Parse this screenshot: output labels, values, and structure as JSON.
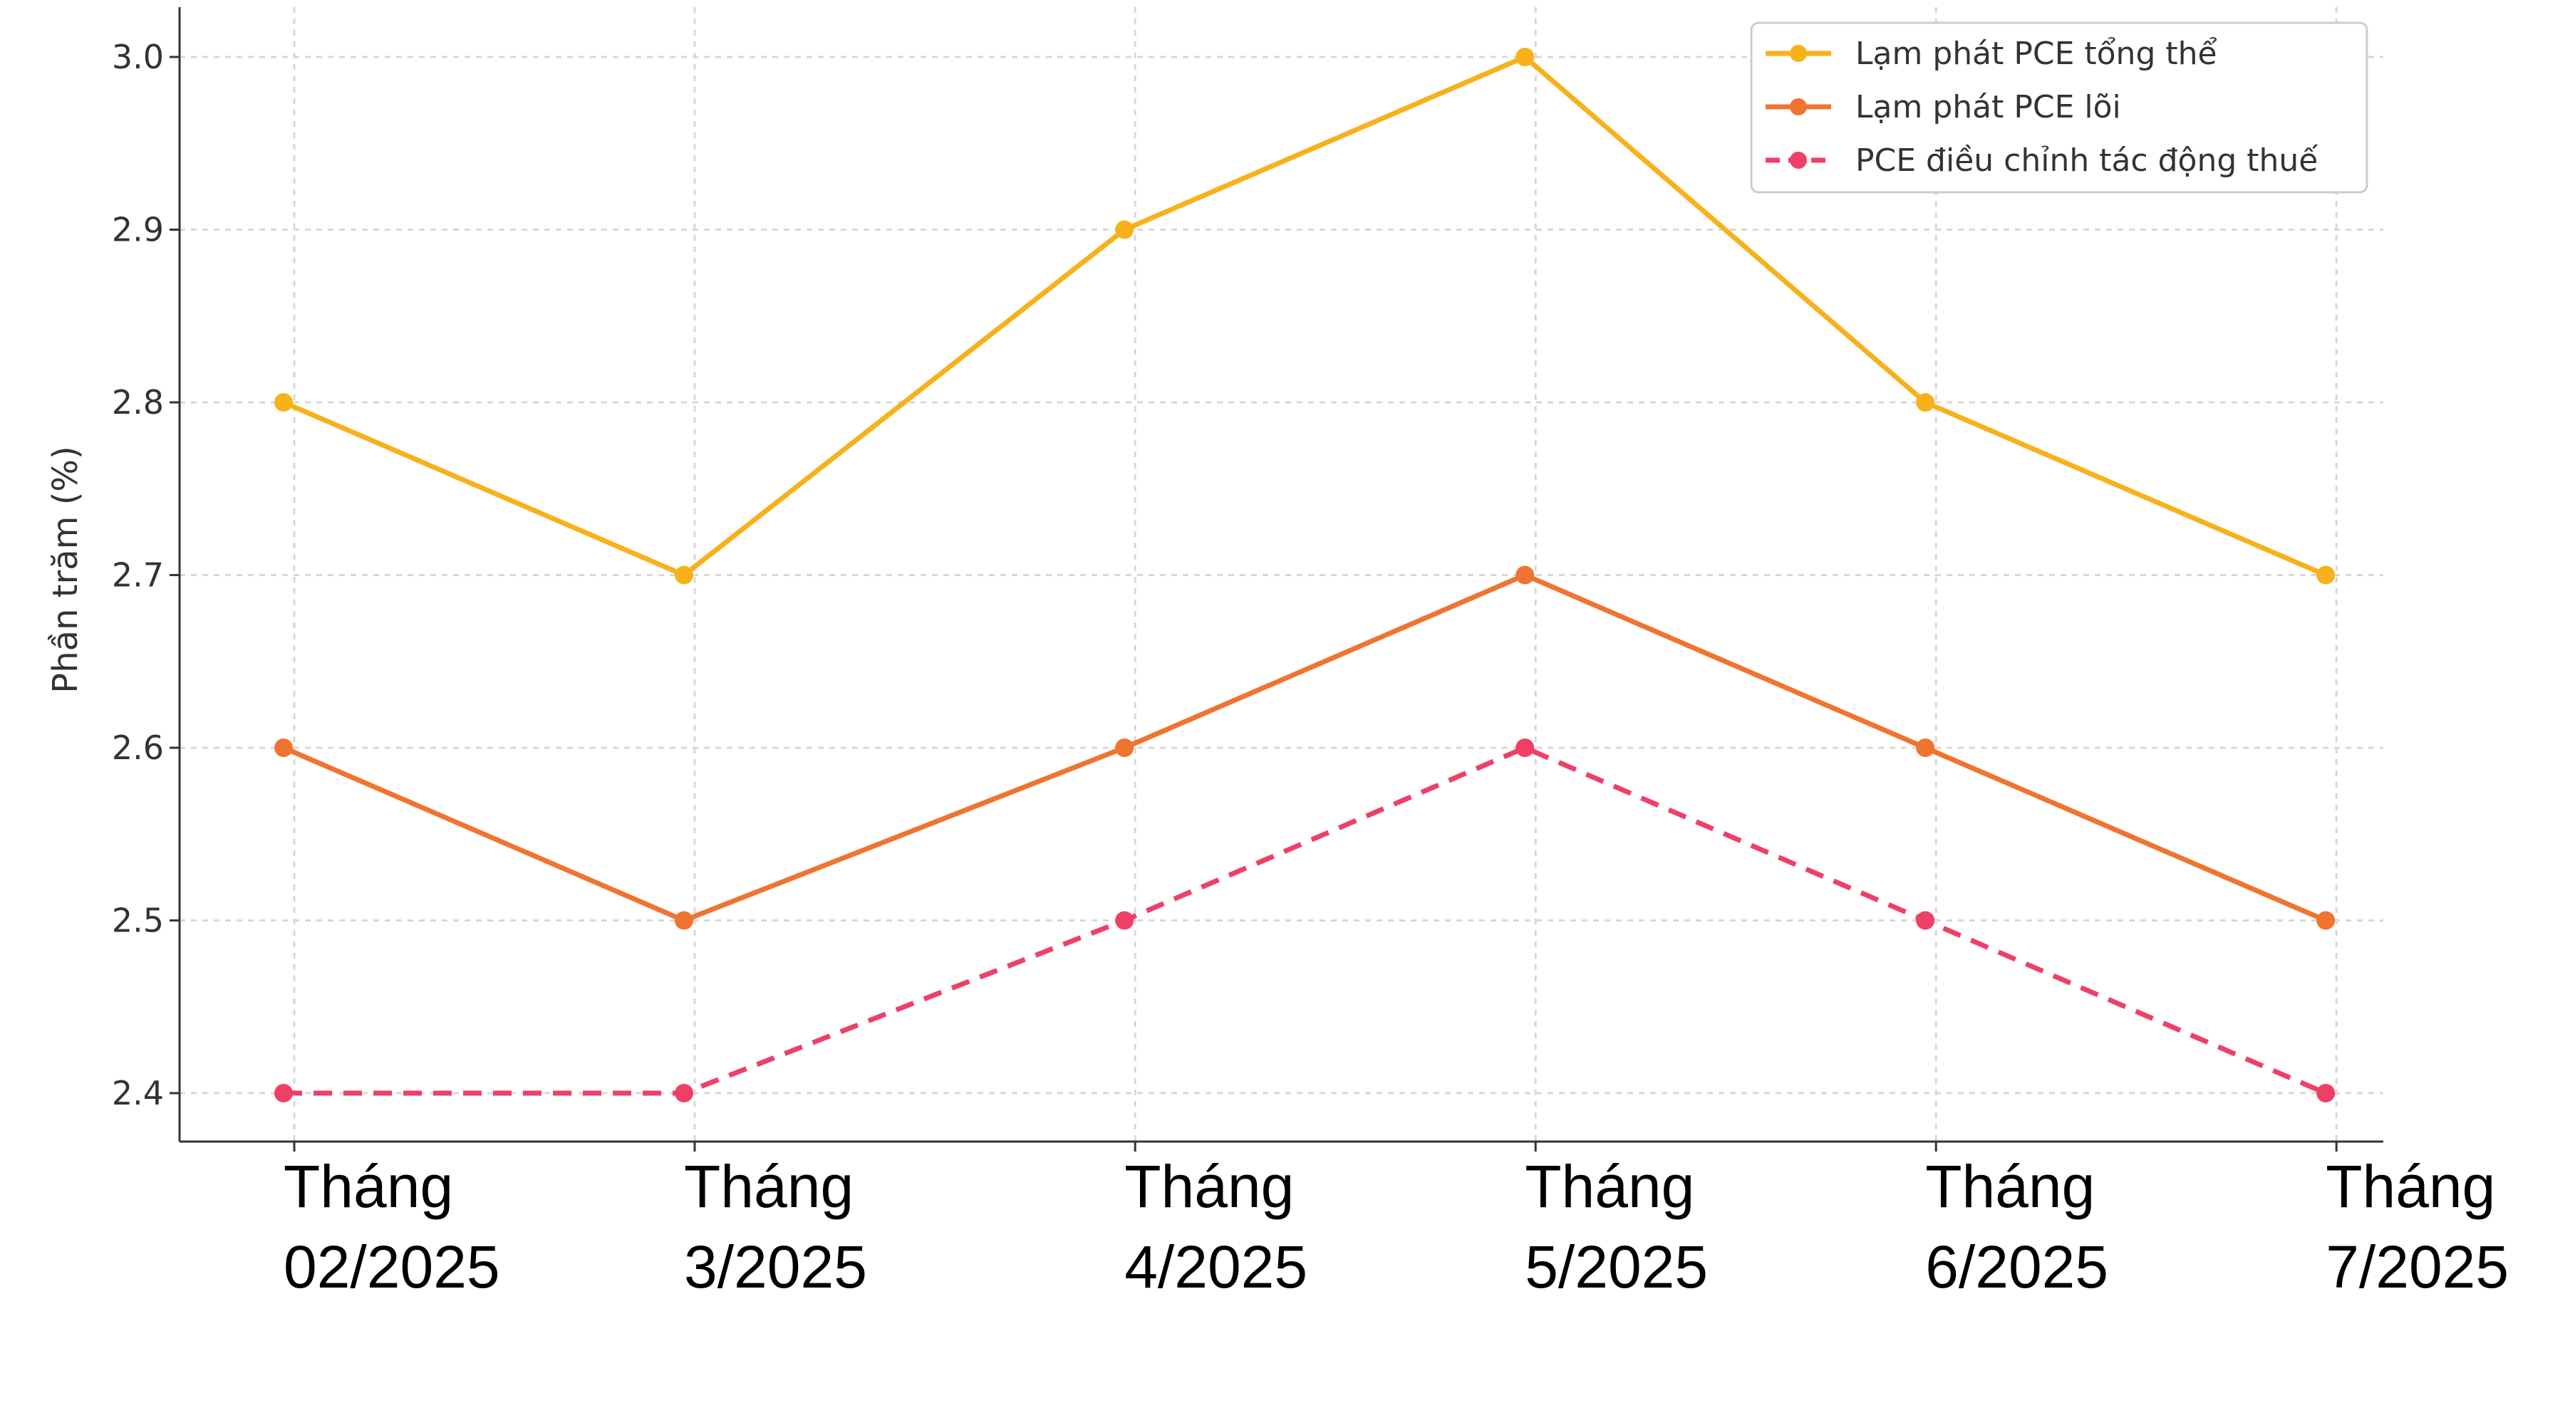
{
  "chart_data": {
    "type": "line",
    "title": "",
    "xlabel": "",
    "ylabel": "Phần trăm (%)",
    "categories": [
      [
        "Tháng",
        "02/2025"
      ],
      [
        "Tháng",
        "3/2025"
      ],
      [
        "Tháng",
        "4/2025"
      ],
      [
        "Tháng",
        "5/2025"
      ],
      [
        "Tháng",
        "6/2025"
      ],
      [
        "Tháng",
        "7/2025"
      ]
    ],
    "x_positions": [
      0,
      1,
      2.1,
      3.1,
      4.1,
      5.1
    ],
    "ylim": [
      2.4,
      3.0
    ],
    "yticks": [
      "2.4",
      "2.5",
      "2.6",
      "2.7",
      "2.8",
      "2.9",
      "3.0"
    ],
    "grid": true,
    "legend_position": "top-right",
    "series": [
      {
        "name": "Lạm phát PCE tổng thể",
        "values": [
          2.8,
          2.7,
          2.9,
          3.0,
          2.8,
          2.7
        ],
        "color": "#F7B11B",
        "dashed": false
      },
      {
        "name": "Lạm phát PCE lõi",
        "values": [
          2.6,
          2.5,
          2.6,
          2.7,
          2.6,
          2.5
        ],
        "color": "#EF7430",
        "dashed": false
      },
      {
        "name": "PCE điều chỉnh tác động thuế",
        "values": [
          2.4,
          2.4,
          2.5,
          2.6,
          2.5,
          2.4
        ],
        "color": "#EE4067",
        "dashed": true
      }
    ]
  }
}
